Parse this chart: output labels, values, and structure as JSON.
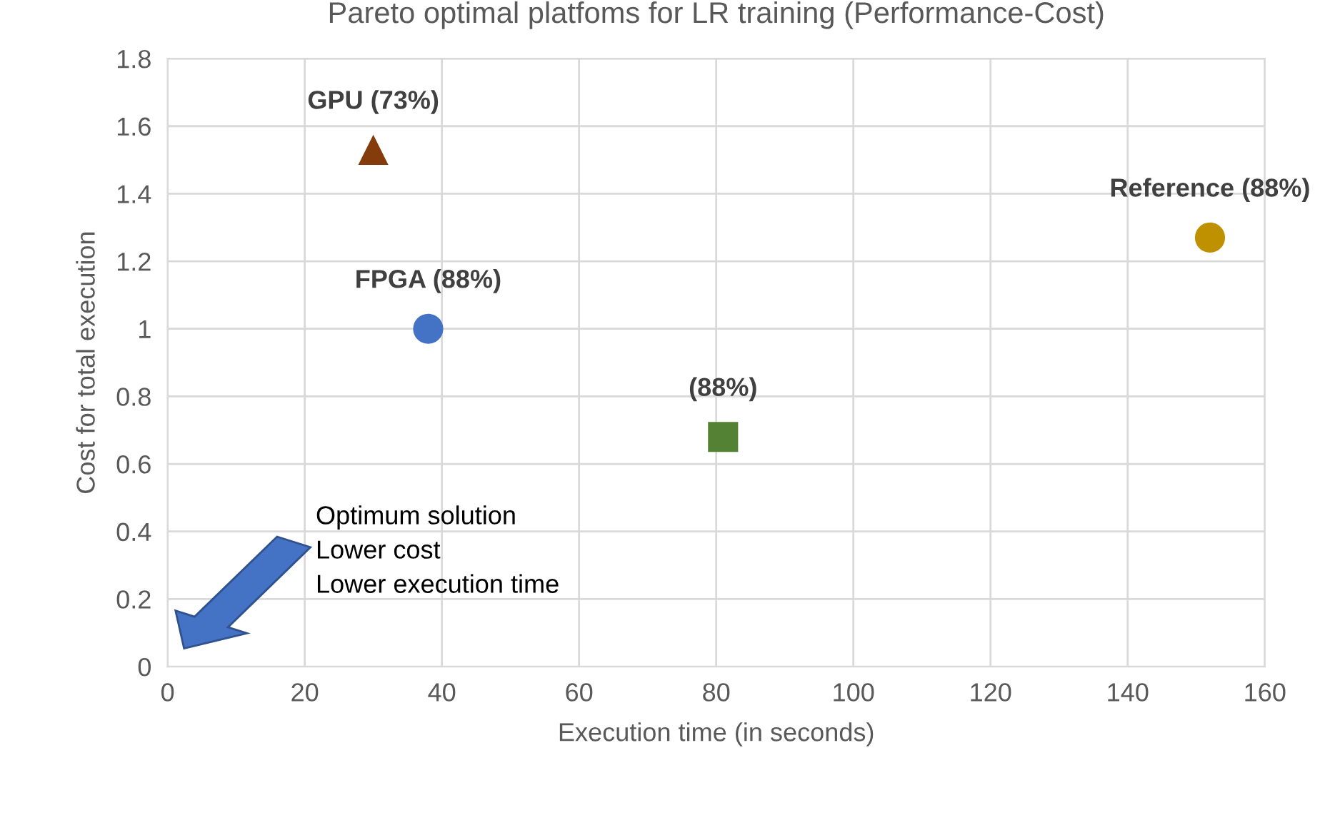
{
  "chart_data": {
    "type": "scatter",
    "title": "Pareto optimal platfoms for LR training (Performance-Cost)",
    "xlabel": "Execution time (in seconds)",
    "ylabel": "Cost for total execution",
    "series": [
      {
        "name": "GPU (73%)",
        "color": "#843c0c",
        "marker": "triangle",
        "x": [
          30
        ],
        "values": [
          1.53
        ]
      },
      {
        "name": "FPGA (88%)",
        "color": "#4472c4",
        "marker": "circle",
        "x": [
          38
        ],
        "values": [
          1.0
        ]
      },
      {
        "color": "#548235",
        "marker": "square",
        "x": [
          81
        ],
        "values": [
          0.68
        ]
      },
      {
        "name": "Reference (88%)",
        "color": "#bf9000",
        "marker": "circle",
        "x": [
          152
        ],
        "values": [
          1.27
        ]
      }
    ],
    "annotations": [
      {
        "text": "(88%)",
        "x": 81,
        "y": 0.68
      },
      "Optimum solution\nLower cost\nLower execution time"
    ],
    "xlim": [
      0,
      160
    ],
    "xticks": [
      0,
      20,
      40,
      60,
      80,
      100,
      120,
      140,
      160
    ],
    "ylim": [
      0,
      1.8
    ],
    "yticks": [
      0,
      0.2,
      0.4,
      0.6,
      0.8,
      1,
      1.2,
      1.4,
      1.6,
      1.8
    ],
    "grid": true,
    "legend": false
  }
}
